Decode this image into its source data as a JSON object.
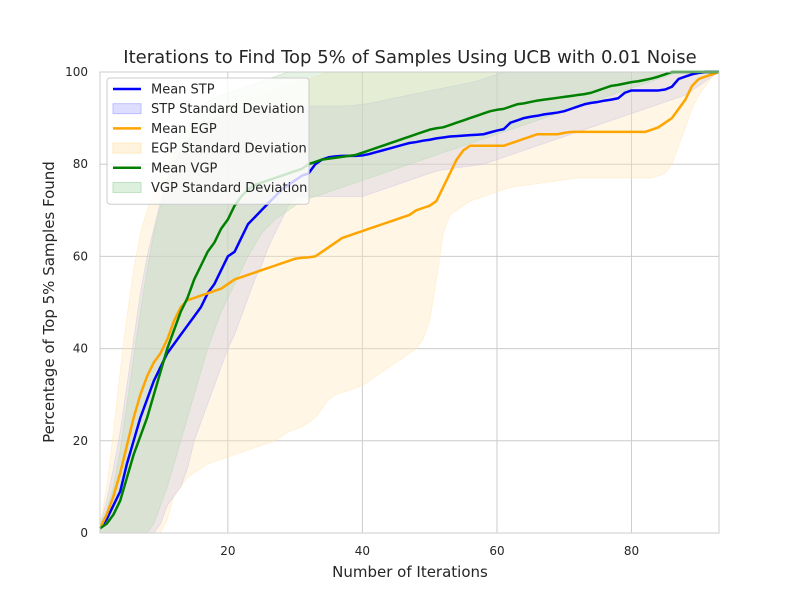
{
  "chart_data": {
    "type": "line",
    "title": "Iterations to Find Top 5% of Samples Using UCB with 0.01 Noise",
    "xlabel": "Number of Iterations",
    "ylabel": "Percentage of Top 5% Samples Found",
    "xlim": [
      1,
      93
    ],
    "ylim": [
      0,
      100
    ],
    "xticks": [
      20,
      40,
      60,
      80
    ],
    "yticks": [
      0,
      20,
      40,
      60,
      80,
      100
    ],
    "grid": true,
    "legend_position": "top-left",
    "x": [
      1,
      2,
      3,
      4,
      5,
      6,
      7,
      8,
      9,
      10,
      11,
      12,
      13,
      14,
      15,
      16,
      17,
      18,
      19,
      20,
      21,
      22,
      23,
      24,
      25,
      26,
      27,
      28,
      29,
      30,
      31,
      32,
      33,
      34,
      35,
      36,
      37,
      38,
      39,
      40,
      41,
      42,
      43,
      44,
      45,
      46,
      47,
      48,
      49,
      50,
      51,
      52,
      53,
      54,
      55,
      56,
      57,
      58,
      59,
      60,
      61,
      62,
      63,
      64,
      65,
      66,
      67,
      68,
      69,
      70,
      71,
      72,
      73,
      74,
      75,
      76,
      77,
      78,
      79,
      80,
      81,
      82,
      83,
      84,
      85,
      86,
      87,
      88,
      89,
      90,
      91,
      92,
      93
    ],
    "series": [
      {
        "name": "Mean STP",
        "band_name": "STP Standard Deviation",
        "color": "#0000ff",
        "band_color": "#b4b4ff",
        "mean": [
          1,
          3,
          6,
          9,
          15,
          20,
          25,
          29,
          33,
          36,
          39,
          41,
          43,
          45,
          47,
          49,
          52,
          54,
          57,
          60,
          61,
          64,
          67,
          68.5,
          70,
          71.5,
          73,
          74.5,
          75.5,
          76.5,
          77.5,
          78,
          80,
          81,
          81.5,
          81.7,
          81.8,
          81.8,
          81.8,
          81.9,
          82.2,
          82.6,
          83.0,
          83.4,
          83.8,
          84.2,
          84.6,
          84.8,
          85.1,
          85.3,
          85.6,
          85.8,
          86.0,
          86.1,
          86.2,
          86.3,
          86.4,
          86.5,
          86.9,
          87.3,
          87.6,
          89.0,
          89.5,
          90.0,
          90.3,
          90.5,
          90.8,
          91.0,
          91.2,
          91.5,
          92.0,
          92.5,
          93.0,
          93.3,
          93.5,
          93.8,
          94.0,
          94.3,
          95.5,
          96.0,
          96.0,
          96.0,
          96.0,
          96.0,
          96.2,
          96.8,
          98.5,
          99.0,
          99.5,
          99.8,
          100,
          100,
          100
        ],
        "upper": [
          2,
          7,
          14,
          22,
          32,
          42,
          52,
          60,
          66,
          72,
          76,
          80,
          83,
          85,
          87,
          88,
          89,
          90,
          90.5,
          91,
          91.3,
          91.6,
          91.8,
          92,
          92.1,
          92.2,
          92.3,
          92.4,
          92.5,
          92.5,
          92.6,
          92.6,
          92.6,
          92.6,
          92.6,
          92.6,
          92.6,
          92.7,
          92.8,
          93,
          93.2,
          93.5,
          93.8,
          94.1,
          94.4,
          94.7,
          95,
          95.3,
          95.6,
          95.9,
          96.2,
          96.5,
          96.8,
          97.1,
          97.4,
          97.7,
          98,
          98.5,
          99,
          99.5,
          100,
          100,
          100,
          100,
          100,
          100,
          100,
          100,
          100,
          100,
          100,
          100,
          100,
          100,
          100,
          100,
          100,
          100,
          100,
          100,
          100,
          100,
          100,
          100,
          100,
          100,
          100,
          100,
          100,
          100,
          100,
          100,
          100
        ],
        "lower": [
          0,
          0,
          0,
          0,
          0,
          0,
          0,
          0,
          0,
          2,
          6,
          8,
          10,
          14,
          20,
          24,
          28,
          32,
          36,
          40,
          43,
          47,
          51,
          55,
          58,
          62,
          65,
          68,
          71,
          72.5,
          73,
          73,
          73,
          73,
          73,
          73,
          73,
          73,
          73,
          73,
          73.5,
          74,
          74.5,
          75,
          75.5,
          76,
          76.5,
          77,
          77.5,
          78,
          78.5,
          78.8,
          79,
          79.2,
          79.4,
          79.6,
          79.8,
          80,
          80.5,
          81,
          81.5,
          82,
          82.5,
          83,
          83.5,
          84,
          84.5,
          85,
          85.5,
          86,
          86.5,
          87,
          87.5,
          88,
          88.5,
          89,
          89.5,
          90,
          90.5,
          91,
          91.5,
          92,
          92.5,
          93,
          93.5,
          94,
          94.5,
          95,
          96,
          97,
          98,
          99,
          100
        ]
      },
      {
        "name": "Mean EGP",
        "band_name": "EGP Standard Deviation",
        "color": "#ffa500",
        "band_color": "#ffe5b4",
        "mean": [
          1,
          4,
          8,
          13,
          19,
          25,
          30,
          34,
          37,
          39,
          42,
          46,
          49,
          50.5,
          51,
          51.5,
          52,
          52.5,
          53,
          54,
          55,
          55.5,
          56,
          56.5,
          57,
          57.5,
          58,
          58.5,
          59,
          59.5,
          59.7,
          59.8,
          60,
          61,
          62,
          63,
          64,
          64.5,
          65,
          65.5,
          66,
          66.5,
          67,
          67.5,
          68,
          68.5,
          69,
          70,
          70.5,
          71,
          72,
          75,
          78,
          81,
          83,
          84,
          84,
          84,
          84,
          84,
          84,
          84.5,
          85,
          85.5,
          86,
          86.5,
          86.5,
          86.5,
          86.5,
          86.8,
          87,
          87,
          87,
          87,
          87,
          87,
          87,
          87,
          87,
          87,
          87,
          87,
          87.5,
          88,
          89,
          90,
          92,
          94,
          97,
          98.5,
          99,
          99.5,
          100
        ],
        "upper": [
          2,
          10,
          22,
          35,
          47,
          57,
          65,
          70,
          74,
          77,
          80,
          82,
          84,
          86,
          87.5,
          88.5,
          89.5,
          90.5,
          91.5,
          92.5,
          93,
          93.5,
          94,
          94.5,
          95,
          95.5,
          96,
          96.5,
          97,
          97.5,
          98,
          98.5,
          99,
          99.5,
          100,
          100,
          100,
          100,
          100,
          100,
          100,
          100,
          100,
          100,
          100,
          100,
          100,
          100,
          100,
          100,
          100,
          100,
          100,
          100,
          100,
          100,
          100,
          100,
          100,
          100,
          100,
          100,
          100,
          100,
          100,
          100,
          100,
          100,
          100,
          100,
          100,
          100,
          100,
          100,
          100,
          100,
          100,
          100,
          100,
          100,
          100,
          100,
          100,
          100,
          100,
          100,
          100,
          100,
          100,
          100,
          100,
          100,
          100
        ],
        "lower": [
          0,
          0,
          0,
          0,
          0,
          0,
          0,
          0,
          0,
          0,
          3,
          8,
          10,
          12,
          13,
          14,
          15,
          15.5,
          16,
          16.5,
          17,
          17.5,
          18,
          18.5,
          19,
          19.5,
          20,
          21,
          22,
          22.5,
          23,
          24,
          25,
          27,
          29,
          30,
          30.5,
          31,
          31.5,
          32,
          33,
          34,
          35,
          36,
          37,
          38,
          39,
          40,
          42,
          46,
          55,
          65,
          69,
          70,
          71,
          72,
          72.5,
          73,
          73.5,
          74,
          74.5,
          75,
          75.2,
          75.4,
          75.6,
          75.8,
          76,
          76.2,
          76.4,
          76.6,
          76.8,
          77,
          77,
          77,
          77,
          77,
          77,
          77,
          77,
          77,
          77,
          77,
          77,
          77.5,
          78,
          80,
          84,
          88,
          92,
          95,
          97,
          99,
          100
        ]
      },
      {
        "name": "Mean VGP",
        "band_name": "VGP Standard Deviation",
        "color": "#008000",
        "band_color": "#b4dcb4",
        "mean": [
          1,
          2,
          4,
          7,
          12,
          17,
          21,
          25,
          30,
          35,
          40,
          44,
          48,
          51,
          55,
          58,
          61,
          63,
          66,
          68,
          71,
          73,
          74.5,
          75.5,
          76,
          76.5,
          77,
          77.5,
          78,
          78.5,
          79,
          80,
          80.5,
          81,
          81.2,
          81.4,
          81.6,
          81.8,
          82,
          82.5,
          83,
          83.5,
          84,
          84.5,
          85,
          85.5,
          86,
          86.5,
          87,
          87.5,
          87.8,
          88,
          88.5,
          89,
          89.5,
          90,
          90.5,
          91,
          91.5,
          91.8,
          92,
          92.5,
          93,
          93.2,
          93.5,
          93.8,
          94,
          94.2,
          94.4,
          94.6,
          94.8,
          95,
          95.2,
          95.5,
          96,
          96.5,
          97,
          97.2,
          97.5,
          97.8,
          98,
          98.3,
          98.6,
          99,
          99.5,
          100,
          100,
          100,
          100,
          100,
          100,
          100,
          100
        ],
        "upper": [
          2,
          5,
          10,
          18,
          28,
          38,
          48,
          57,
          65,
          71,
          77,
          82,
          86,
          89,
          91,
          92.5,
          93.5,
          94.5,
          95,
          95.5,
          96,
          96.5,
          97,
          97.5,
          98,
          98.5,
          99,
          99.5,
          100,
          100,
          100,
          100,
          100,
          100,
          100,
          100,
          100,
          100,
          100,
          100,
          100,
          100,
          100,
          100,
          100,
          100,
          100,
          100,
          100,
          100,
          100,
          100,
          100,
          100,
          100,
          100,
          100,
          100,
          100,
          100,
          100,
          100,
          100,
          100,
          100,
          100,
          100,
          100,
          100,
          100,
          100,
          100,
          100,
          100,
          100,
          100,
          100,
          100,
          100,
          100,
          100,
          100,
          100,
          100,
          100,
          100,
          100,
          100,
          100,
          100,
          100,
          100,
          100
        ],
        "lower": [
          0,
          0,
          0,
          0,
          0,
          0,
          0,
          0,
          2,
          6,
          10,
          15,
          20,
          25,
          30,
          35,
          40,
          44,
          48,
          51,
          54,
          57,
          60,
          62.5,
          65,
          66.5,
          68,
          69,
          70,
          71,
          72,
          72.5,
          73,
          73.5,
          74,
          74.5,
          75,
          75.5,
          76,
          76.5,
          77,
          77.5,
          78,
          78.5,
          79,
          79.5,
          80,
          80.5,
          81,
          81.5,
          82,
          82.5,
          83,
          83.5,
          84,
          84.5,
          85,
          85.5,
          86,
          86.5,
          87,
          87.5,
          88,
          88.5,
          89,
          89.5,
          90,
          90.5,
          91,
          91.5,
          92,
          92.5,
          93,
          93.5,
          94,
          94.5,
          95,
          95.5,
          96,
          96.5,
          97,
          97.5,
          98,
          98.5,
          99,
          99.5,
          100,
          100,
          100,
          100,
          100,
          100,
          100
        ]
      }
    ]
  }
}
